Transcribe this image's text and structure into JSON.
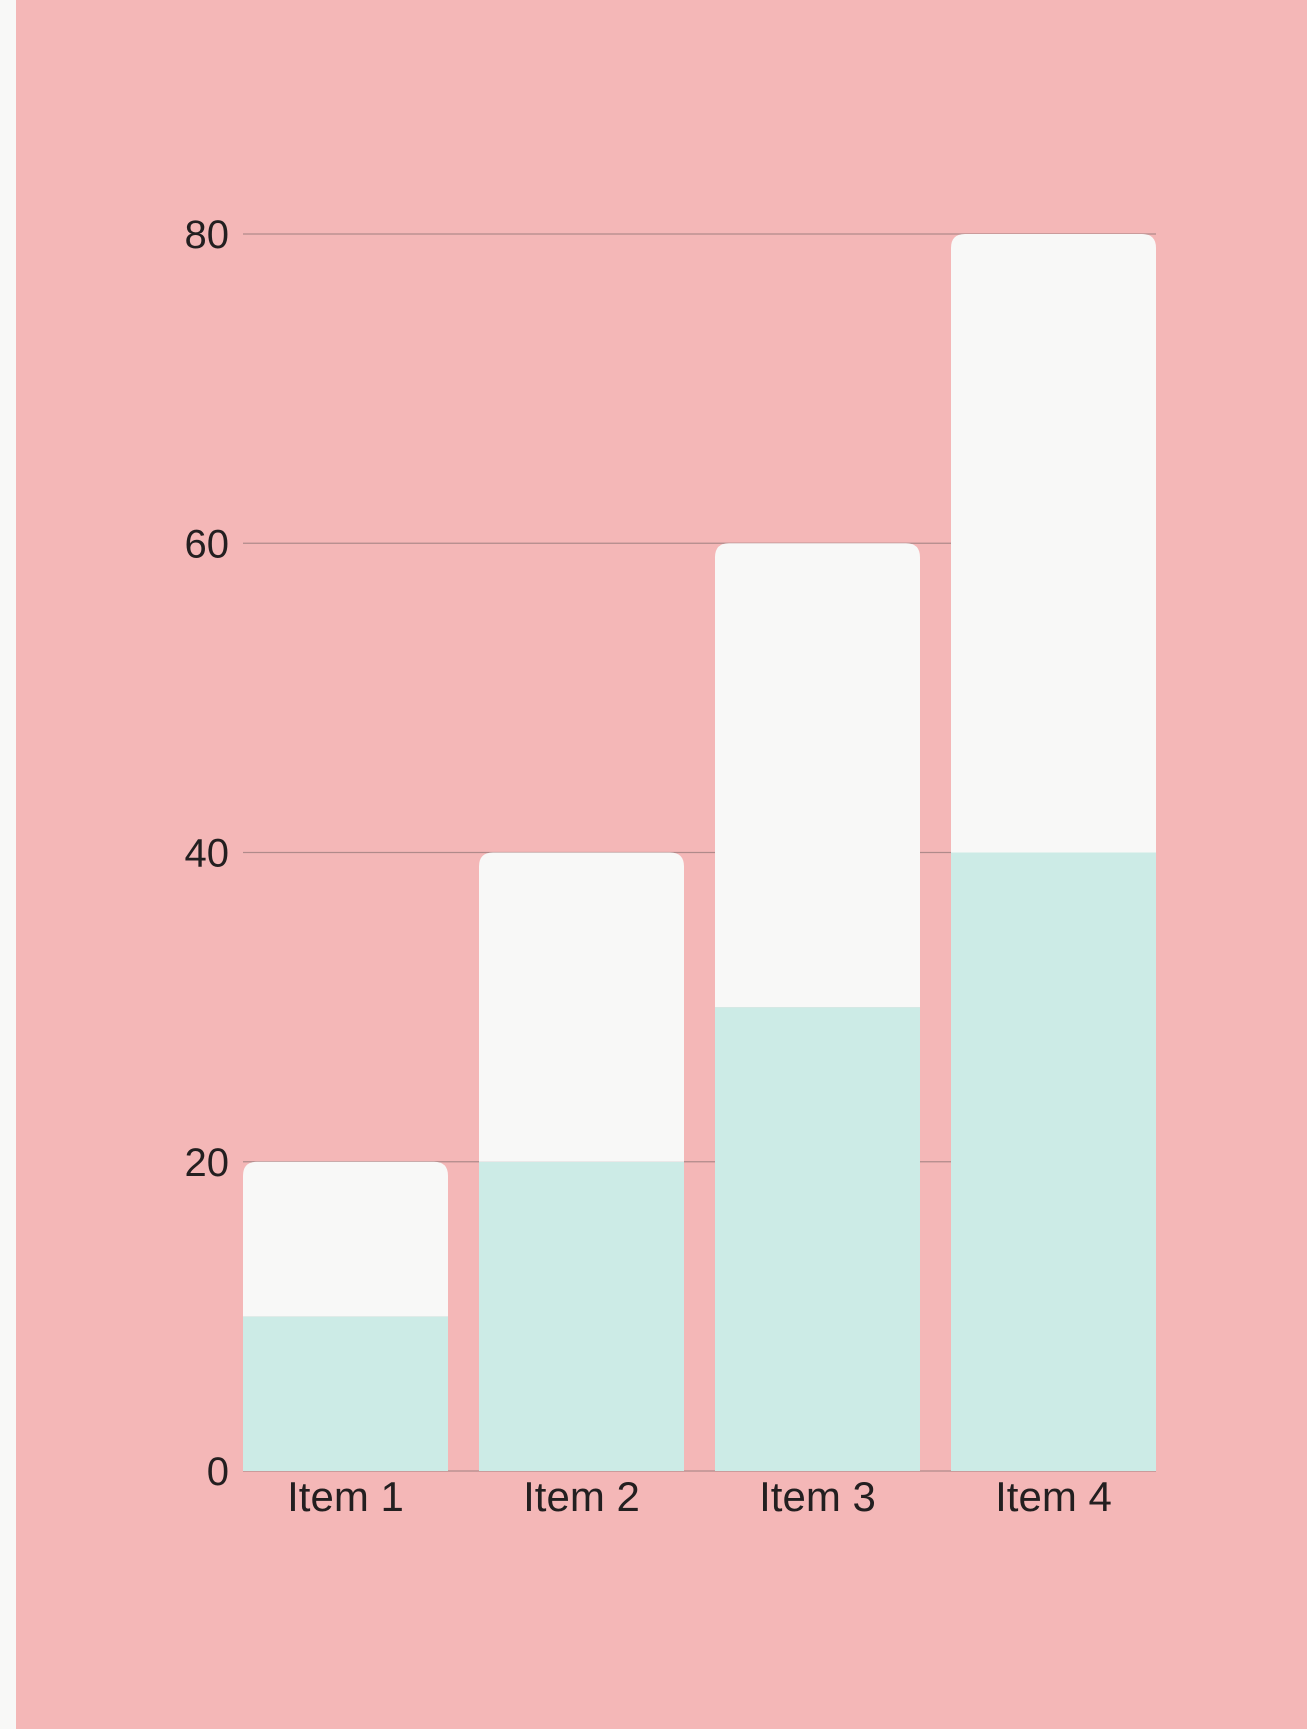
{
  "colors": {
    "background": "#F4B7B7",
    "page_margin": "#F8F8F7",
    "series_bottom": "#CCEBE6",
    "series_top": "#F8F8F7",
    "gridline": "#B08A8A",
    "text": "#231F20"
  },
  "chart_data": {
    "type": "bar",
    "stacked": true,
    "title": "",
    "xlabel": "",
    "ylabel": "",
    "categories": [
      "Item 1",
      "Item 2",
      "Item 3",
      "Item 4"
    ],
    "series": [
      {
        "values": [
          10,
          20,
          30,
          40
        ],
        "color": "#CCEBE6"
      },
      {
        "values": [
          10,
          20,
          30,
          40
        ],
        "color": "#F8F8F7"
      }
    ],
    "ylim": [
      0,
      80
    ],
    "yticks": [
      0,
      20,
      40,
      60,
      80
    ],
    "ytick_labels": [
      "0",
      "20",
      "40",
      "60",
      "80"
    ],
    "grid": true,
    "legend": "none"
  }
}
